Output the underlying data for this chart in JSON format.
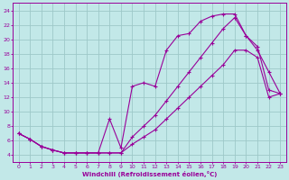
{
  "xlabel": "Windchill (Refroidissement éolien,°C)",
  "xlim": [
    -0.5,
    23.5
  ],
  "ylim": [
    3,
    25
  ],
  "xticks": [
    0,
    1,
    2,
    3,
    4,
    5,
    6,
    7,
    8,
    9,
    10,
    11,
    12,
    13,
    14,
    15,
    16,
    17,
    18,
    19,
    20,
    21,
    22,
    23
  ],
  "yticks": [
    4,
    6,
    8,
    10,
    12,
    14,
    16,
    18,
    20,
    22,
    24
  ],
  "bg_color": "#c2e8e8",
  "line_color": "#990099",
  "grid_color": "#9ec8c8",
  "line1_x": [
    0,
    1,
    2,
    3,
    4,
    5,
    6,
    7,
    8,
    9,
    10,
    11,
    12,
    13,
    14,
    15,
    16,
    17,
    18,
    19,
    20,
    21,
    22,
    23
  ],
  "line1_y": [
    7.0,
    6.2,
    5.2,
    4.7,
    4.3,
    4.3,
    4.3,
    4.3,
    4.3,
    4.3,
    6.5,
    8.0,
    9.5,
    11.5,
    13.5,
    15.5,
    17.5,
    19.5,
    21.5,
    23.0,
    20.5,
    19.0,
    13.0,
    12.5
  ],
  "line2_x": [
    0,
    1,
    2,
    3,
    4,
    5,
    6,
    7,
    8,
    9,
    10,
    11,
    12,
    13,
    14,
    15,
    16,
    17,
    18,
    19,
    20,
    21,
    22,
    23
  ],
  "line2_y": [
    7.0,
    6.2,
    5.2,
    4.7,
    4.3,
    4.3,
    4.3,
    4.3,
    9.0,
    5.0,
    13.5,
    14.0,
    13.5,
    18.5,
    20.5,
    20.8,
    22.5,
    23.2,
    23.5,
    23.5,
    20.5,
    18.5,
    15.5,
    12.5
  ],
  "line3_x": [
    0,
    1,
    2,
    3,
    4,
    5,
    6,
    7,
    8,
    9,
    10,
    11,
    12,
    13,
    14,
    15,
    16,
    17,
    18,
    19,
    20,
    21,
    22,
    23
  ],
  "line3_y": [
    7.0,
    6.2,
    5.2,
    4.7,
    4.3,
    4.3,
    4.3,
    4.3,
    4.3,
    4.3,
    5.5,
    6.5,
    7.5,
    9.0,
    10.5,
    12.0,
    13.5,
    15.0,
    16.5,
    18.5,
    18.5,
    17.5,
    12.0,
    12.5
  ]
}
